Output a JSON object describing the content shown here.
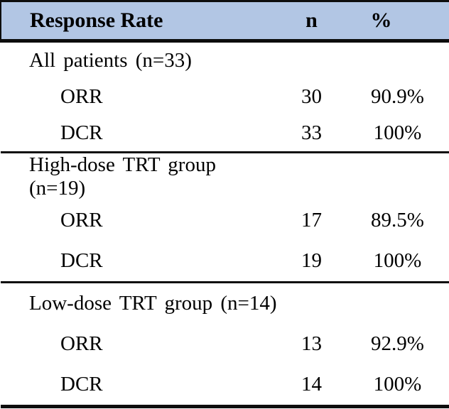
{
  "colors": {
    "header_bg": "#b2c6e4",
    "rule": "#0d0d0d",
    "text": "#000000"
  },
  "table": {
    "header": {
      "label": "Response Rate",
      "n": "n",
      "pct": "%"
    },
    "sections": [
      {
        "title": "All patients (n=33)",
        "rows": [
          {
            "label": "ORR",
            "n": "30",
            "pct": "90.9%"
          },
          {
            "label": "DCR",
            "n": "33",
            "pct": "100%"
          }
        ]
      },
      {
        "title": "High-dose TRT group (n=19)",
        "rows": [
          {
            "label": "ORR",
            "n": "17",
            "pct": "89.5%"
          },
          {
            "label": "DCR",
            "n": "19",
            "pct": "100%"
          }
        ]
      },
      {
        "title": "Low-dose TRT group (n=14)",
        "rows": [
          {
            "label": "ORR",
            "n": "13",
            "pct": "92.9%"
          },
          {
            "label": "DCR",
            "n": "14",
            "pct": "100%"
          }
        ]
      }
    ]
  },
  "chart_data": {
    "type": "table",
    "columns": [
      "Response Rate",
      "n",
      "%"
    ],
    "rows": [
      [
        "All patients (n=33)",
        "",
        ""
      ],
      [
        "ORR",
        "30",
        "90.9%"
      ],
      [
        "DCR",
        "33",
        "100%"
      ],
      [
        "High-dose TRT group (n=19)",
        "",
        ""
      ],
      [
        "ORR",
        "17",
        "89.5%"
      ],
      [
        "DCR",
        "19",
        "100%"
      ],
      [
        "Low-dose TRT group (n=14)",
        "",
        ""
      ],
      [
        "ORR",
        "13",
        "92.9%"
      ],
      [
        "DCR",
        "14",
        "100%"
      ]
    ]
  }
}
